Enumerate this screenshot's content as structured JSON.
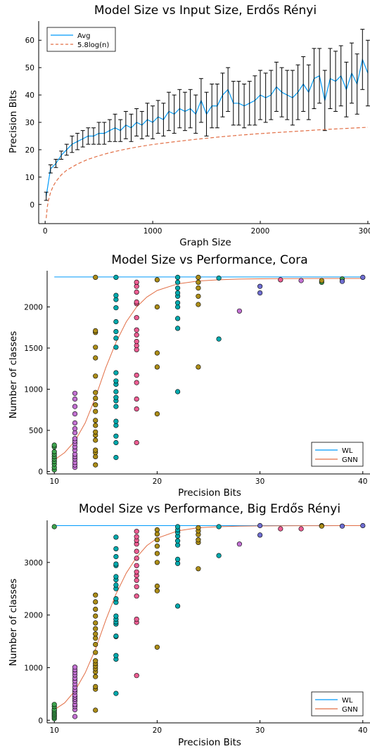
{
  "chart_data": [
    {
      "type": "line",
      "title": "Model Size vs Input Size, Erdős Rényi",
      "xlabel": "Graph Size",
      "ylabel": "Precision Bits",
      "xlim": [
        -60,
        3020
      ],
      "ylim": [
        -7,
        67
      ],
      "xticks": [
        0,
        1000,
        2000,
        3000
      ],
      "yticks": [
        0,
        10,
        20,
        30,
        40,
        50,
        60
      ],
      "grid": false,
      "legend": "top-left",
      "series": [
        {
          "name": "Avg",
          "color": "#009AFA",
          "style": "solid",
          "x": [
            10,
            50,
            100,
            150,
            200,
            250,
            300,
            350,
            400,
            450,
            500,
            550,
            600,
            650,
            700,
            750,
            800,
            850,
            900,
            950,
            1000,
            1050,
            1100,
            1150,
            1200,
            1250,
            1300,
            1350,
            1400,
            1450,
            1500,
            1550,
            1600,
            1650,
            1700,
            1750,
            1800,
            1850,
            1900,
            1950,
            2000,
            2050,
            2100,
            2150,
            2200,
            2250,
            2300,
            2350,
            2400,
            2450,
            2500,
            2550,
            2600,
            2650,
            2700,
            2750,
            2800,
            2850,
            2900,
            2950,
            3000
          ],
          "y": [
            3,
            13,
            15,
            18,
            20,
            22,
            23,
            24,
            25,
            25,
            26,
            26,
            27,
            28,
            27,
            29,
            28,
            30,
            29,
            31,
            30,
            32,
            31,
            34,
            33,
            35,
            34,
            35,
            33,
            38,
            33,
            36,
            36,
            40,
            42,
            37,
            37,
            36,
            37,
            38,
            40,
            39,
            40,
            43,
            41,
            40,
            39,
            41,
            44,
            41,
            46,
            47,
            38,
            46,
            45,
            47,
            42,
            48,
            44,
            53,
            48
          ],
          "errors": [
            1.5,
            1.5,
            1.5,
            1.5,
            2,
            3,
            3,
            3,
            3,
            3,
            4,
            4,
            4,
            5,
            4,
            5,
            5,
            5,
            5,
            6,
            6,
            6,
            6,
            7,
            7,
            7,
            7,
            7,
            7,
            8,
            8,
            8,
            8,
            8,
            8,
            8,
            8,
            8,
            8,
            9,
            9,
            9,
            9,
            9,
            9,
            9,
            10,
            10,
            10,
            10,
            11,
            10,
            11,
            11,
            11,
            11,
            10,
            11,
            11,
            11,
            12
          ]
        },
        {
          "name": "5.8log(n)",
          "color": "#E26F46",
          "style": "dashed",
          "x": [
            10,
            20,
            30,
            50,
            75,
            100,
            150,
            200,
            300,
            400,
            500,
            600,
            700,
            800,
            900,
            1000,
            1200,
            1400,
            1600,
            1800,
            2000,
            2200,
            2400,
            2600,
            2800,
            3000
          ],
          "y": [
            -5,
            -1,
            1.4,
            4.3,
            6.7,
            8.4,
            10.8,
            12.5,
            14.8,
            16.5,
            17.8,
            18.9,
            19.8,
            20.6,
            21.3,
            21.9,
            22.9,
            23.8,
            24.6,
            25.3,
            25.9,
            26.4,
            26.9,
            27.4,
            27.8,
            28.2
          ]
        }
      ]
    },
    {
      "type": "scatter",
      "title": "Model Size vs Performance, Cora",
      "xlabel": "Precision Bits",
      "ylabel": "Number of classes",
      "xlim": [
        9.3,
        40.7
      ],
      "ylim": [
        -30,
        2440
      ],
      "xticks": [
        10,
        20,
        30,
        40
      ],
      "yticks": [
        0,
        500,
        1000,
        1500,
        2000
      ],
      "grid": false,
      "legend": "bottom-right",
      "series": [
        {
          "name": "WL",
          "color": "#009AFA",
          "type": "line",
          "x": [
            10,
            40
          ],
          "y": [
            2364,
            2364
          ]
        },
        {
          "name": "GNN",
          "color": "#E26F46",
          "type": "line",
          "x": [
            10,
            11,
            12,
            13,
            14,
            15,
            16,
            17,
            18,
            19,
            20,
            22,
            24,
            26,
            28,
            30,
            32,
            34,
            36,
            38,
            40
          ],
          "y": [
            140,
            230,
            370,
            590,
            900,
            1260,
            1570,
            1820,
            2000,
            2120,
            2200,
            2280,
            2315,
            2330,
            2338,
            2342,
            2344,
            2345,
            2346,
            2346,
            2346
          ]
        },
        {
          "name": "",
          "color": "#3EA44E",
          "type": "scatter",
          "x": [
            10,
            10,
            10,
            10,
            10,
            10,
            10,
            10,
            10,
            10,
            36,
            38
          ],
          "y": [
            20,
            50,
            90,
            120,
            150,
            180,
            210,
            240,
            300,
            320,
            2300,
            2340
          ]
        },
        {
          "name": "",
          "color": "#C271D2",
          "type": "scatter",
          "x": [
            12,
            12,
            12,
            12,
            12,
            12,
            12,
            12,
            12,
            12,
            12,
            12,
            12,
            12,
            12,
            12,
            12,
            12,
            28,
            34
          ],
          "y": [
            50,
            80,
            110,
            150,
            180,
            210,
            260,
            300,
            340,
            370,
            400,
            470,
            520,
            590,
            700,
            790,
            880,
            950,
            1950,
            2320
          ]
        },
        {
          "name": "",
          "color": "#AC8D18",
          "type": "scatter",
          "x": [
            14,
            14,
            14,
            14,
            14,
            14,
            14,
            14,
            14,
            14,
            14,
            14,
            14,
            14,
            14,
            14,
            14,
            14,
            14,
            20,
            20,
            20,
            20,
            20,
            24,
            24,
            24,
            24,
            24,
            24,
            36
          ],
          "y": [
            80,
            180,
            230,
            260,
            380,
            440,
            480,
            560,
            620,
            730,
            810,
            890,
            960,
            1160,
            1380,
            1510,
            1690,
            1710,
            2360,
            700,
            1270,
            1440,
            2000,
            2330,
            1270,
            2030,
            2130,
            2230,
            2300,
            2360,
            2320
          ]
        },
        {
          "name": "",
          "color": "#00A9AD",
          "type": "scatter",
          "x": [
            16,
            16,
            16,
            16,
            16,
            16,
            16,
            16,
            16,
            16,
            16,
            16,
            16,
            16,
            16,
            16,
            16,
            16,
            16,
            16,
            22,
            22,
            22,
            22,
            22,
            22,
            22,
            22,
            22,
            22,
            26,
            26
          ],
          "y": [
            170,
            350,
            430,
            560,
            610,
            790,
            860,
            900,
            970,
            1060,
            1100,
            1200,
            1510,
            1620,
            1700,
            1820,
            1990,
            2090,
            2140,
            2360,
            970,
            1740,
            1860,
            2000,
            2050,
            2130,
            2170,
            2230,
            2300,
            2360,
            1610,
            2350
          ]
        },
        {
          "name": "",
          "color": "#ED5D92",
          "type": "scatter",
          "x": [
            18,
            18,
            18,
            18,
            18,
            18,
            18,
            18,
            18,
            18,
            18,
            18,
            18,
            18,
            18,
            18,
            32
          ],
          "y": [
            350,
            760,
            880,
            1080,
            1170,
            1480,
            1530,
            1580,
            1660,
            1720,
            1870,
            2040,
            2060,
            2180,
            2250,
            2300,
            2330
          ]
        },
        {
          "name": "",
          "color": "#6F6ED1",
          "type": "scatter",
          "x": [
            30,
            30,
            38,
            40
          ],
          "y": [
            2170,
            2250,
            2310,
            2360
          ]
        }
      ]
    },
    {
      "type": "scatter",
      "title": "Model Size vs Performance, Big Erdős Rényi",
      "xlabel": "Precision Bits",
      "ylabel": "Number of classes",
      "xlim": [
        9.3,
        40.7
      ],
      "ylim": [
        -50,
        3800
      ],
      "xticks": [
        10,
        20,
        30,
        40
      ],
      "yticks": [
        0,
        1000,
        2000,
        3000
      ],
      "grid": false,
      "legend": "bottom-right",
      "series": [
        {
          "name": "WL",
          "color": "#009AFA",
          "type": "line",
          "x": [
            10,
            40
          ],
          "y": [
            3700,
            3700
          ]
        },
        {
          "name": "GNN",
          "color": "#E26F46",
          "type": "line",
          "x": [
            10,
            11,
            12,
            13,
            14,
            15,
            16,
            17,
            18,
            19,
            20,
            22,
            24,
            26,
            28,
            30,
            32,
            34,
            36,
            38,
            40
          ],
          "y": [
            200,
            330,
            560,
            900,
            1350,
            1900,
            2400,
            2800,
            3100,
            3320,
            3460,
            3600,
            3660,
            3680,
            3690,
            3695,
            3697,
            3698,
            3699,
            3700,
            3700
          ]
        },
        {
          "name": "",
          "color": "#3EA44E",
          "type": "scatter",
          "x": [
            10,
            10,
            10,
            10,
            10,
            10,
            10,
            10,
            10,
            10,
            36
          ],
          "y": [
            30,
            60,
            90,
            120,
            150,
            180,
            210,
            260,
            300,
            3680,
            3700
          ]
        },
        {
          "name": "",
          "color": "#C271D2",
          "type": "scatter",
          "x": [
            12,
            12,
            12,
            12,
            12,
            12,
            12,
            12,
            12,
            12,
            12,
            12,
            12,
            12,
            12,
            12,
            12,
            12,
            28
          ],
          "y": [
            70,
            200,
            260,
            300,
            360,
            400,
            440,
            480,
            540,
            580,
            630,
            690,
            750,
            800,
            860,
            910,
            960,
            1010,
            3350
          ]
        },
        {
          "name": "",
          "color": "#AC8D18",
          "type": "scatter",
          "x": [
            14,
            14,
            14,
            14,
            14,
            14,
            14,
            14,
            14,
            14,
            14,
            14,
            14,
            14,
            14,
            14,
            14,
            14,
            14,
            20,
            20,
            20,
            20,
            20,
            20,
            20,
            20,
            20,
            24,
            24,
            24,
            24,
            24,
            24,
            36
          ],
          "y": [
            190,
            590,
            640,
            830,
            920,
            980,
            1030,
            1080,
            1130,
            1290,
            1440,
            1560,
            1640,
            1740,
            1850,
            1980,
            2110,
            2250,
            2380,
            1390,
            2460,
            2550,
            3000,
            3170,
            3310,
            3430,
            3540,
            3620,
            2880,
            3380,
            3430,
            3530,
            3600,
            3660,
            3690
          ]
        },
        {
          "name": "",
          "color": "#00A9AD",
          "type": "scatter",
          "x": [
            16,
            16,
            16,
            16,
            16,
            16,
            16,
            16,
            16,
            16,
            16,
            16,
            16,
            16,
            16,
            16,
            16,
            16,
            16,
            16,
            22,
            22,
            22,
            22,
            22,
            22,
            22,
            22,
            22,
            26,
            26
          ],
          "y": [
            510,
            1160,
            1230,
            1590,
            1600,
            1830,
            1870,
            1920,
            1980,
            2240,
            2310,
            2500,
            2570,
            2670,
            2730,
            2940,
            2970,
            3110,
            3260,
            3480,
            2170,
            2980,
            3060,
            3330,
            3410,
            3500,
            3570,
            3620,
            3680,
            3130,
            3680
          ]
        },
        {
          "name": "",
          "color": "#ED5D92",
          "type": "scatter",
          "x": [
            18,
            18,
            18,
            18,
            18,
            18,
            18,
            18,
            18,
            18,
            18,
            18,
            18,
            18,
            18,
            32,
            34
          ],
          "y": [
            850,
            1860,
            1920,
            2360,
            2540,
            2660,
            2750,
            2820,
            2940,
            3080,
            3210,
            3350,
            3420,
            3490,
            3590,
            3640,
            3640
          ]
        },
        {
          "name": "",
          "color": "#6F6ED1",
          "type": "scatter",
          "x": [
            30,
            30,
            38,
            40
          ],
          "y": [
            3520,
            3700,
            3690,
            3700
          ]
        }
      ]
    }
  ]
}
